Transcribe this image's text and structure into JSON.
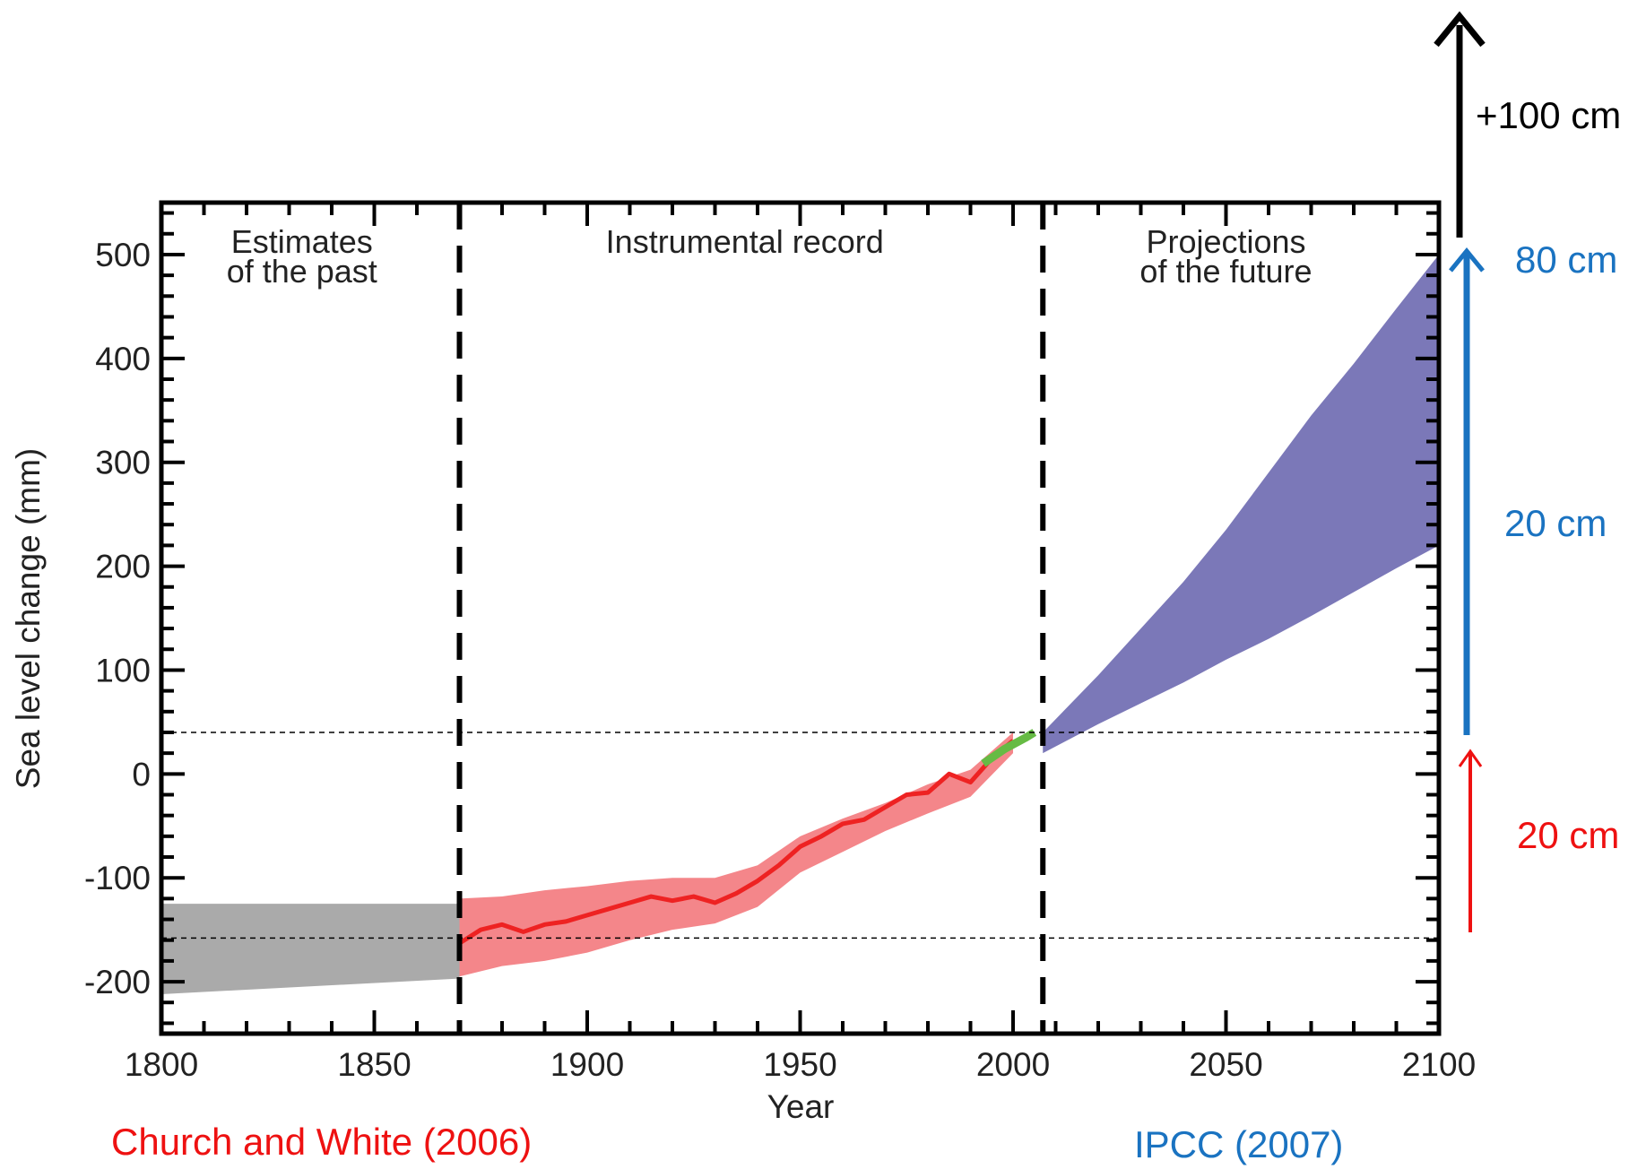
{
  "chart_data": {
    "type": "area",
    "xlabel": "Year",
    "ylabel": "Sea level change (mm)",
    "xlim": [
      1800,
      2100
    ],
    "ylim": [
      -250,
      550
    ],
    "x_ticks": [
      "1800",
      "1850",
      "1900",
      "1950",
      "2000",
      "2050",
      "2100"
    ],
    "y_ticks": [
      "500",
      "400",
      "300",
      "200",
      "100",
      "0",
      "-100",
      "-200"
    ],
    "regions": [
      {
        "label_lines": [
          "Estimates",
          "of the past"
        ],
        "center_x": 1833
      },
      {
        "label_lines": [
          "Instrumental record"
        ],
        "center_x": 1937
      },
      {
        "label_lines": [
          "Projections",
          "of the future"
        ],
        "center_x": 2050
      }
    ],
    "dividers_x": [
      1870,
      2007
    ],
    "reference_lines_y": [
      40,
      -158
    ],
    "colors": {
      "past": "#aaaaaa",
      "instrumental_band": "#f4868a",
      "instrumental_line": "#ee2222",
      "satellite": "#66bb44",
      "projection": "#7b78b8",
      "black_arrow": "#000000",
      "blue_arrow": "#1a73c1",
      "red_arrow": "#ee1111"
    },
    "series": [
      {
        "style": "band",
        "color_key": "past",
        "x": [
          1800,
          1870
        ],
        "upper": [
          -125,
          -125
        ],
        "lower": [
          -212,
          -197
        ]
      },
      {
        "style": "band",
        "color_key": "instrumental_band",
        "x": [
          1870,
          1880,
          1890,
          1900,
          1910,
          1920,
          1930,
          1940,
          1950,
          1960,
          1970,
          1980,
          1990,
          2000
        ],
        "upper": [
          -120,
          -118,
          -112,
          -108,
          -103,
          -100,
          -100,
          -88,
          -60,
          -43,
          -28,
          -10,
          4,
          40
        ],
        "lower": [
          -195,
          -185,
          -180,
          -172,
          -160,
          -150,
          -144,
          -128,
          -95,
          -75,
          -55,
          -38,
          -22,
          20
        ]
      },
      {
        "style": "line",
        "color_key": "instrumental_line",
        "x": [
          1870,
          1875,
          1880,
          1885,
          1890,
          1895,
          1900,
          1905,
          1910,
          1915,
          1920,
          1925,
          1930,
          1935,
          1940,
          1945,
          1950,
          1955,
          1960,
          1965,
          1970,
          1975,
          1980,
          1985,
          1990,
          1995,
          2000
        ],
        "y": [
          -163,
          -150,
          -145,
          -152,
          -145,
          -142,
          -136,
          -130,
          -124,
          -118,
          -122,
          -118,
          -124,
          -115,
          -103,
          -88,
          -70,
          -60,
          -48,
          -44,
          -32,
          -20,
          -18,
          0,
          -8,
          15,
          32
        ]
      },
      {
        "style": "line",
        "color_key": "satellite",
        "x": [
          1993,
          1998,
          2003,
          2005
        ],
        "y": [
          10,
          24,
          35,
          40
        ]
      },
      {
        "style": "band",
        "color_key": "projection",
        "x": [
          2007,
          2020,
          2030,
          2040,
          2050,
          2060,
          2070,
          2080,
          2090,
          2100
        ],
        "upper": [
          40,
          95,
          140,
          185,
          235,
          290,
          345,
          395,
          448,
          500
        ],
        "lower": [
          20,
          48,
          68,
          88,
          110,
          130,
          152,
          175,
          198,
          220
        ]
      }
    ]
  },
  "annotations": {
    "top_arrow_label": "+100 cm",
    "blue_top_label": "80 cm",
    "blue_mid_label": "20 cm",
    "red_label": "20 cm",
    "source_left": "Church and White (2006)",
    "source_right": "IPCC (2007)"
  }
}
